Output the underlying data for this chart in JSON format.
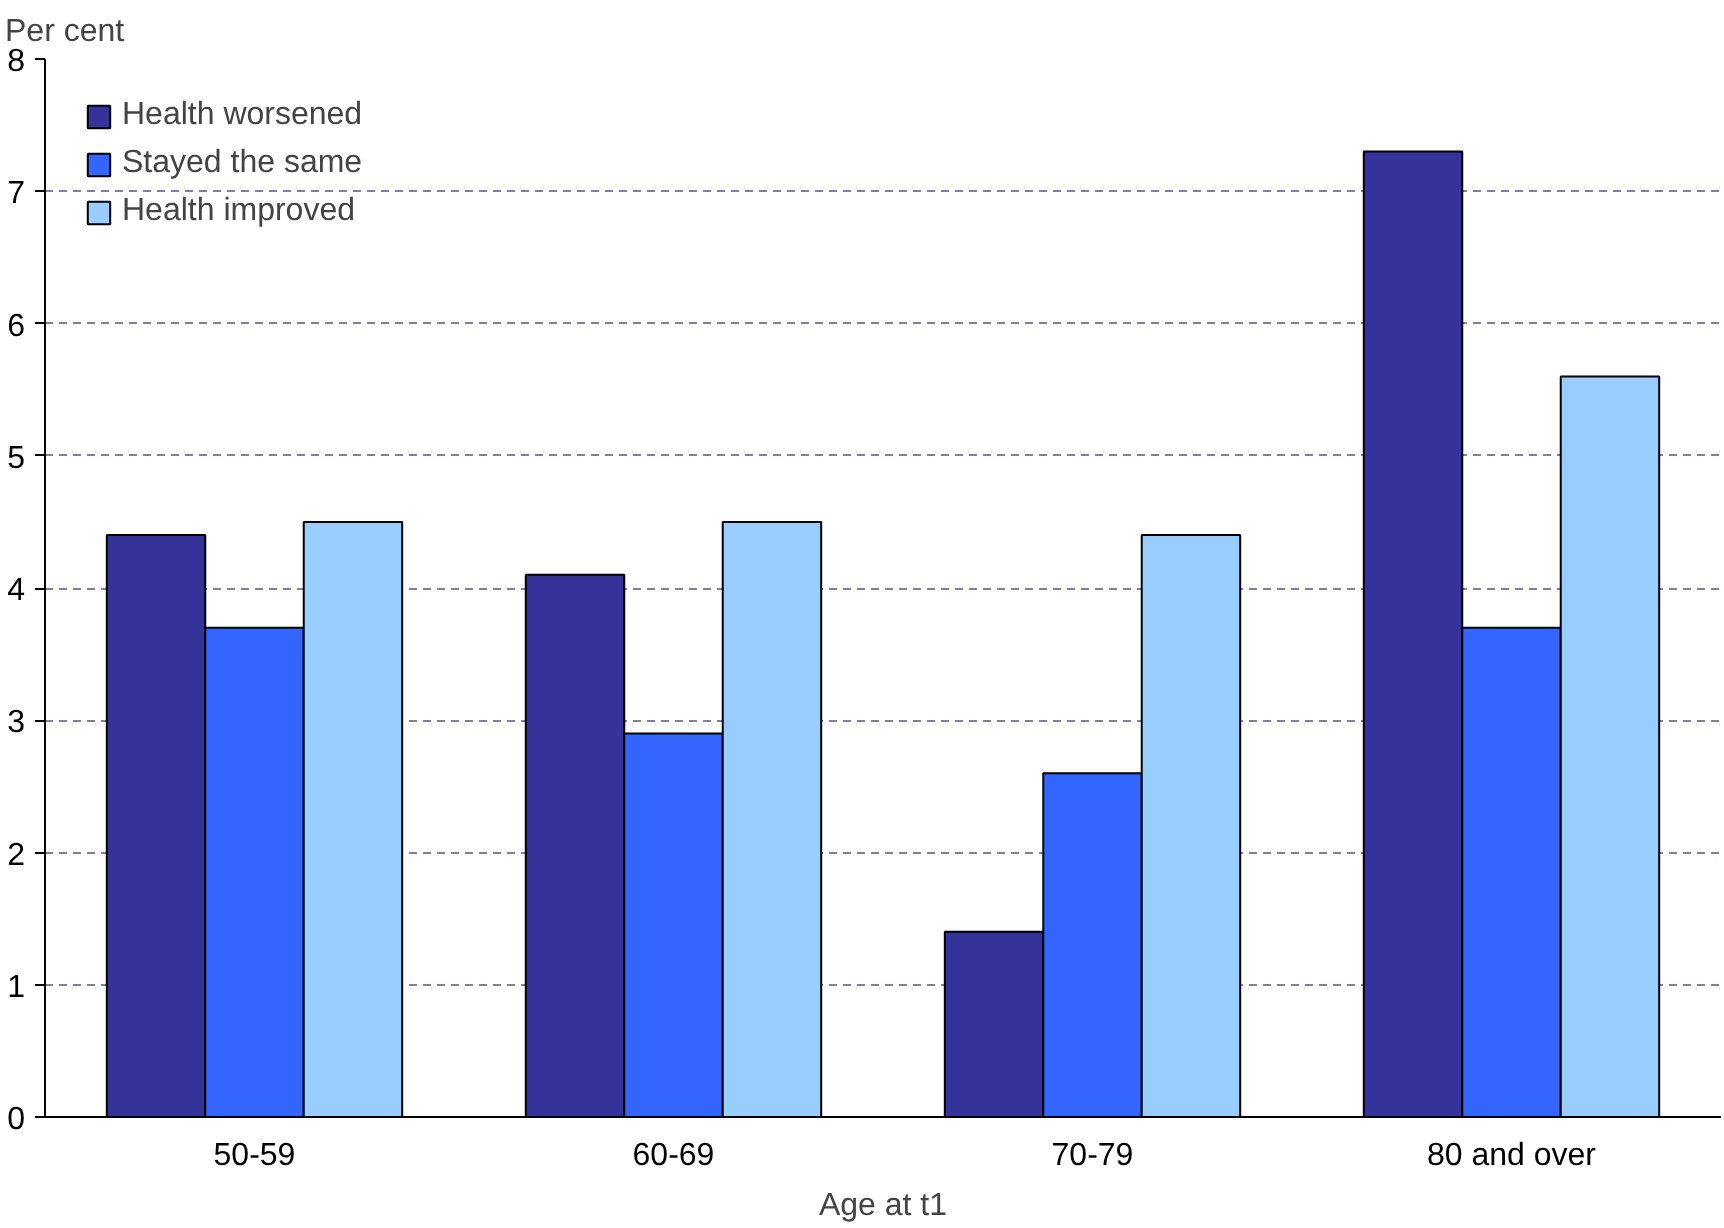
{
  "chart_data": {
    "type": "bar",
    "xlabel": "Age at t1",
    "ylabel": "Per cent",
    "categories": [
      "50-59",
      "60-69",
      "70-79",
      "80 and over"
    ],
    "series": [
      {
        "name": "Health worsened",
        "color": "#333399",
        "values": [
          4.4,
          4.1,
          1.4,
          7.3
        ]
      },
      {
        "name": "Stayed the same",
        "color": "#3366ff",
        "values": [
          3.7,
          2.9,
          2.6,
          3.7
        ]
      },
      {
        "name": "Health improved",
        "color": "#99ccff",
        "values": [
          4.5,
          4.5,
          4.4,
          5.6
        ]
      }
    ],
    "ylim": [
      0,
      8
    ],
    "yticks": [
      0,
      1,
      2,
      3,
      4,
      5,
      6,
      7,
      8
    ],
    "grid": "y",
    "legend": "top left"
  }
}
